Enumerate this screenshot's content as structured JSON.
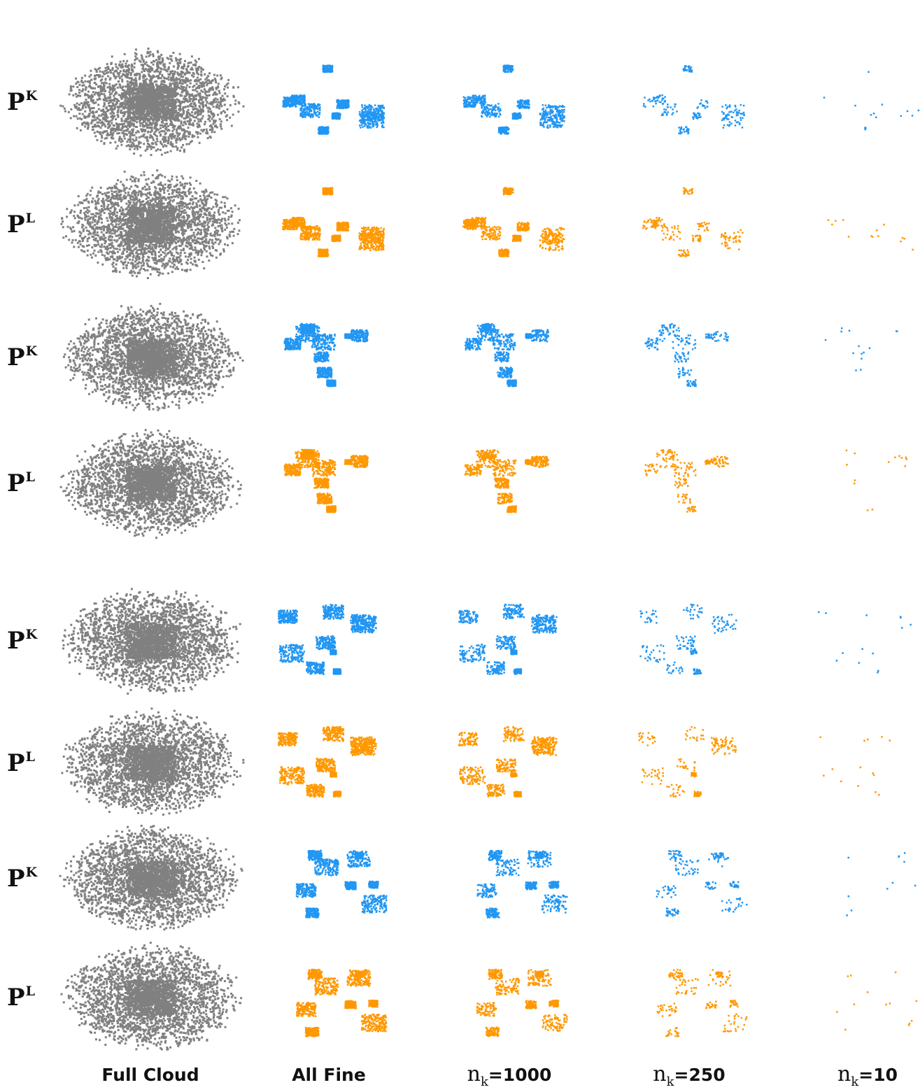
{
  "rows": [
    {
      "symbol": "P",
      "superscript": "K"
    },
    {
      "symbol": "P",
      "superscript": "L"
    },
    {
      "symbol": "P",
      "superscript": "K"
    },
    {
      "symbol": "P",
      "superscript": "L"
    },
    {
      "symbol": "P",
      "superscript": "K"
    },
    {
      "symbol": "P",
      "superscript": "L"
    },
    {
      "symbol": "P",
      "superscript": "K"
    },
    {
      "symbol": "P",
      "superscript": "L"
    }
  ],
  "columns": [
    {
      "text": "Full Cloud"
    },
    {
      "text": "All Fine"
    },
    {
      "variable": "n",
      "subscript": "k",
      "text": "=1000"
    },
    {
      "variable": "n",
      "subscript": "k",
      "text": "=250"
    },
    {
      "variable": "n",
      "subscript": "k",
      "text": "=10"
    }
  ]
}
